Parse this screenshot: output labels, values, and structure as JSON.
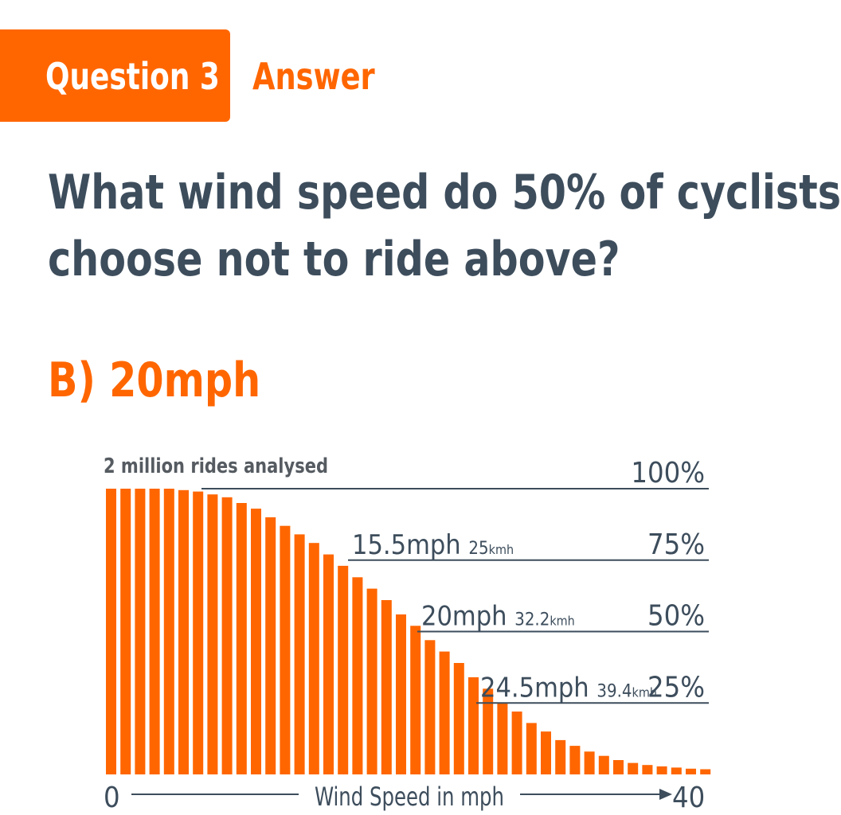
{
  "header": {
    "tag_label": "Question 3",
    "answer_label": "Answer"
  },
  "question": {
    "line1": "What wind speed do 50% of cyclists",
    "line2": "choose not to ride above?"
  },
  "answer": {
    "value": "B) 20mph"
  },
  "colors": {
    "accent": "#ff6600",
    "text_dark": "#3d4d5c",
    "note_text": "#555b61",
    "background": "#ffffff"
  },
  "chart_data": {
    "type": "bar",
    "title": "2 million rides analysed",
    "xlabel": "Wind Speed in mph",
    "ylabel": "",
    "xlim": [
      0,
      40
    ],
    "ylim": [
      0,
      100
    ],
    "x_start_label": "0",
    "x_end_label": "40",
    "values": [
      100,
      100,
      100,
      100,
      100,
      99.5,
      99,
      98,
      97,
      95,
      93,
      90,
      87,
      84,
      81,
      77,
      73,
      69,
      65,
      61,
      56,
      52,
      47,
      43,
      39,
      34,
      30,
      25,
      22,
      18,
      15,
      12,
      10,
      8,
      6.5,
      5,
      4,
      3.3,
      2.8,
      2.4,
      2,
      1.8
    ],
    "reference_lines": [
      {
        "percent": 100,
        "percent_label": "100%",
        "mph_label": "",
        "kmh_number": "",
        "kmh_unit": ""
      },
      {
        "percent": 75,
        "percent_label": "75%",
        "mph_label": "15.5mph",
        "kmh_number": "25",
        "kmh_unit": "kmh"
      },
      {
        "percent": 50,
        "percent_label": "50%",
        "mph_label": "20mph",
        "kmh_number": "32.2",
        "kmh_unit": "kmh"
      },
      {
        "percent": 25,
        "percent_label": "25%",
        "mph_label": "24.5mph",
        "kmh_number": "39.4",
        "kmh_unit": "kmh"
      }
    ]
  }
}
